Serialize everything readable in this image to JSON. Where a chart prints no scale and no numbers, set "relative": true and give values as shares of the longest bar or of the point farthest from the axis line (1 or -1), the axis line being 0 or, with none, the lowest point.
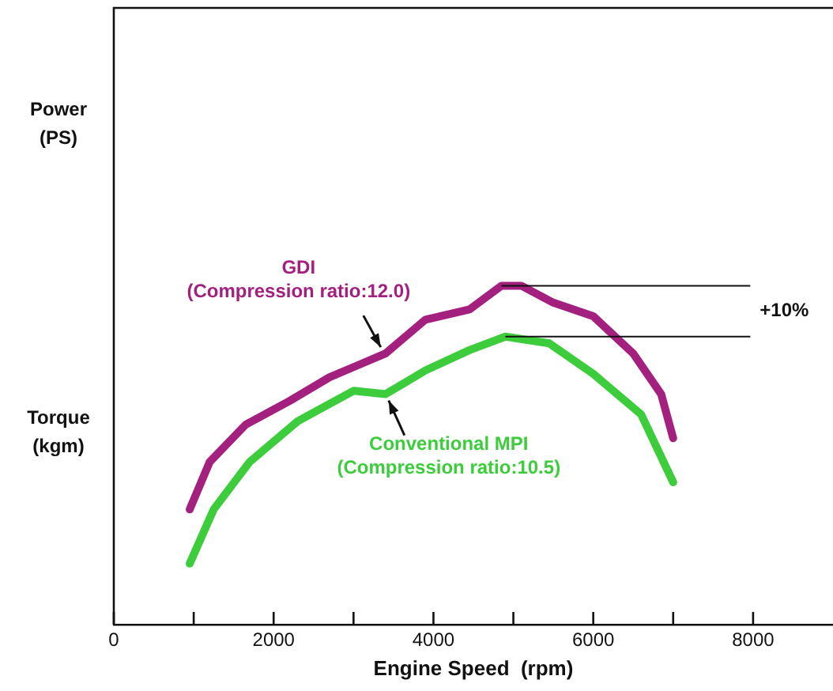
{
  "chart_data": {
    "type": "line",
    "relative": true,
    "xlabel": "Engine Speed  (rpm)",
    "xlim": [
      0,
      9000
    ],
    "xticks": [
      0,
      {
        "value": 1000,
        "label": null
      },
      2000,
      {
        "value": 3000,
        "label": null
      },
      4000,
      {
        "value": 5000,
        "label": null
      },
      6000,
      {
        "value": 7000,
        "label": null
      },
      8000
    ],
    "series": [
      {
        "name": "GDI\n(Compression ratio:12.0)",
        "color": "#a3207f",
        "x": [
          950,
          1200,
          1650,
          2200,
          2700,
          3100,
          3400,
          3900,
          4450,
          4850,
          5100,
          5500,
          6000,
          6500,
          6850,
          7000
        ],
        "values": [
          0.34,
          0.48,
          0.59,
          0.66,
          0.73,
          0.77,
          0.8,
          0.9,
          0.93,
          1.0,
          1.0,
          0.95,
          0.91,
          0.8,
          0.68,
          0.55
        ]
      },
      {
        "name": "Conventional MPI\n(Compression ratio:10.5)",
        "color": "#3ccc3c",
        "x": [
          950,
          1250,
          1700,
          2300,
          3000,
          3400,
          3900,
          4450,
          4900,
          5450,
          6000,
          6600,
          7000
        ],
        "values": [
          0.18,
          0.34,
          0.48,
          0.6,
          0.69,
          0.68,
          0.75,
          0.81,
          0.85,
          0.83,
          0.74,
          0.62,
          0.42
        ]
      }
    ],
    "annotations": [
      "Power (PS)",
      "Torque (kgm)",
      "+10%"
    ],
    "grid": false,
    "legend": false,
    "marker": "none",
    "line_style": "solid"
  }
}
